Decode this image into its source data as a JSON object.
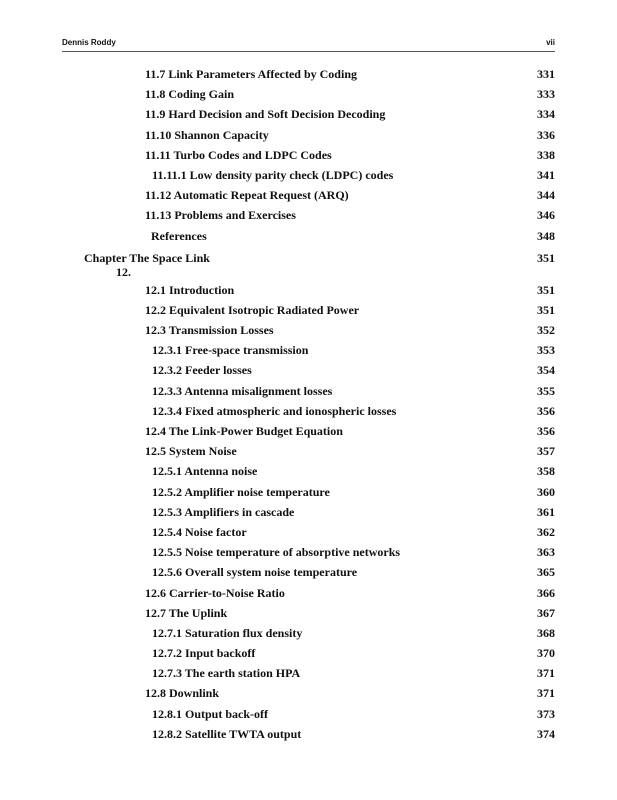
{
  "header": {
    "author": "Dennis Roddy",
    "page": "vii"
  },
  "entries_before": [
    {
      "title": "11.7  Link Parameters Affected by Coding",
      "page": "331",
      "level": 1
    },
    {
      "title": "11.8  Coding Gain",
      "page": "333",
      "level": 1
    },
    {
      "title": "11.9  Hard Decision and Soft Decision Decoding",
      "page": "334",
      "level": 1
    },
    {
      "title": "11.10  Shannon Capacity",
      "page": "336",
      "level": 1
    },
    {
      "title": "11.11  Turbo Codes and LDPC Codes",
      "page": "338",
      "level": 1
    },
    {
      "title": "11.11.1  Low density parity check (LDPC) codes",
      "page": "341",
      "level": 2
    },
    {
      "title": "11.12  Automatic Repeat Request (ARQ)",
      "page": "344",
      "level": 1
    },
    {
      "title": "11.13  Problems and Exercises",
      "page": "346",
      "level": 1
    },
    {
      "title": "References",
      "page": "348",
      "level": "ref"
    }
  ],
  "chapter": {
    "label": "Chapter The Space Link",
    "number": "12.",
    "page": "351"
  },
  "entries_after": [
    {
      "title": "12.1  Introduction",
      "page": "351",
      "level": 1
    },
    {
      "title": "12.2  Equivalent Isotropic Radiated Power",
      "page": "351",
      "level": 1
    },
    {
      "title": "12.3  Transmission Losses",
      "page": "352",
      "level": 1
    },
    {
      "title": "12.3.1  Free-space transmission",
      "page": "353",
      "level": 2
    },
    {
      "title": "12.3.2  Feeder losses",
      "page": "354",
      "level": 2
    },
    {
      "title": "12.3.3  Antenna misalignment losses",
      "page": "355",
      "level": 2
    },
    {
      "title": "12.3.4  Fixed atmospheric and ionospheric losses",
      "page": "356",
      "level": 2
    },
    {
      "title": "12.4  The Link-Power Budget Equation",
      "page": "356",
      "level": 1
    },
    {
      "title": "12.5  System Noise",
      "page": "357",
      "level": 1
    },
    {
      "title": "12.5.1  Antenna noise",
      "page": "358",
      "level": 2
    },
    {
      "title": "12.5.2  Amplifier noise temperature",
      "page": "360",
      "level": 2
    },
    {
      "title": "12.5.3  Amplifiers in cascade",
      "page": "361",
      "level": 2
    },
    {
      "title": "12.5.4  Noise factor",
      "page": "362",
      "level": 2
    },
    {
      "title": "12.5.5  Noise temperature of absorptive networks",
      "page": "363",
      "level": 2
    },
    {
      "title": "12.5.6  Overall system noise temperature",
      "page": "365",
      "level": 2
    },
    {
      "title": "12.6  Carrier-to-Noise Ratio",
      "page": "366",
      "level": 1
    },
    {
      "title": "12.7  The Uplink",
      "page": "367",
      "level": 1
    },
    {
      "title": "12.7.1  Saturation flux density",
      "page": "368",
      "level": 2
    },
    {
      "title": "12.7.2  Input backoff",
      "page": "370",
      "level": 2
    },
    {
      "title": "12.7.3  The earth station HPA",
      "page": "371",
      "level": 2
    },
    {
      "title": "12.8  Downlink",
      "page": "371",
      "level": 1
    },
    {
      "title": "12.8.1  Output back-off",
      "page": "373",
      "level": 2
    },
    {
      "title": "12.8.2  Satellite TWTA output",
      "page": "374",
      "level": 2
    }
  ]
}
